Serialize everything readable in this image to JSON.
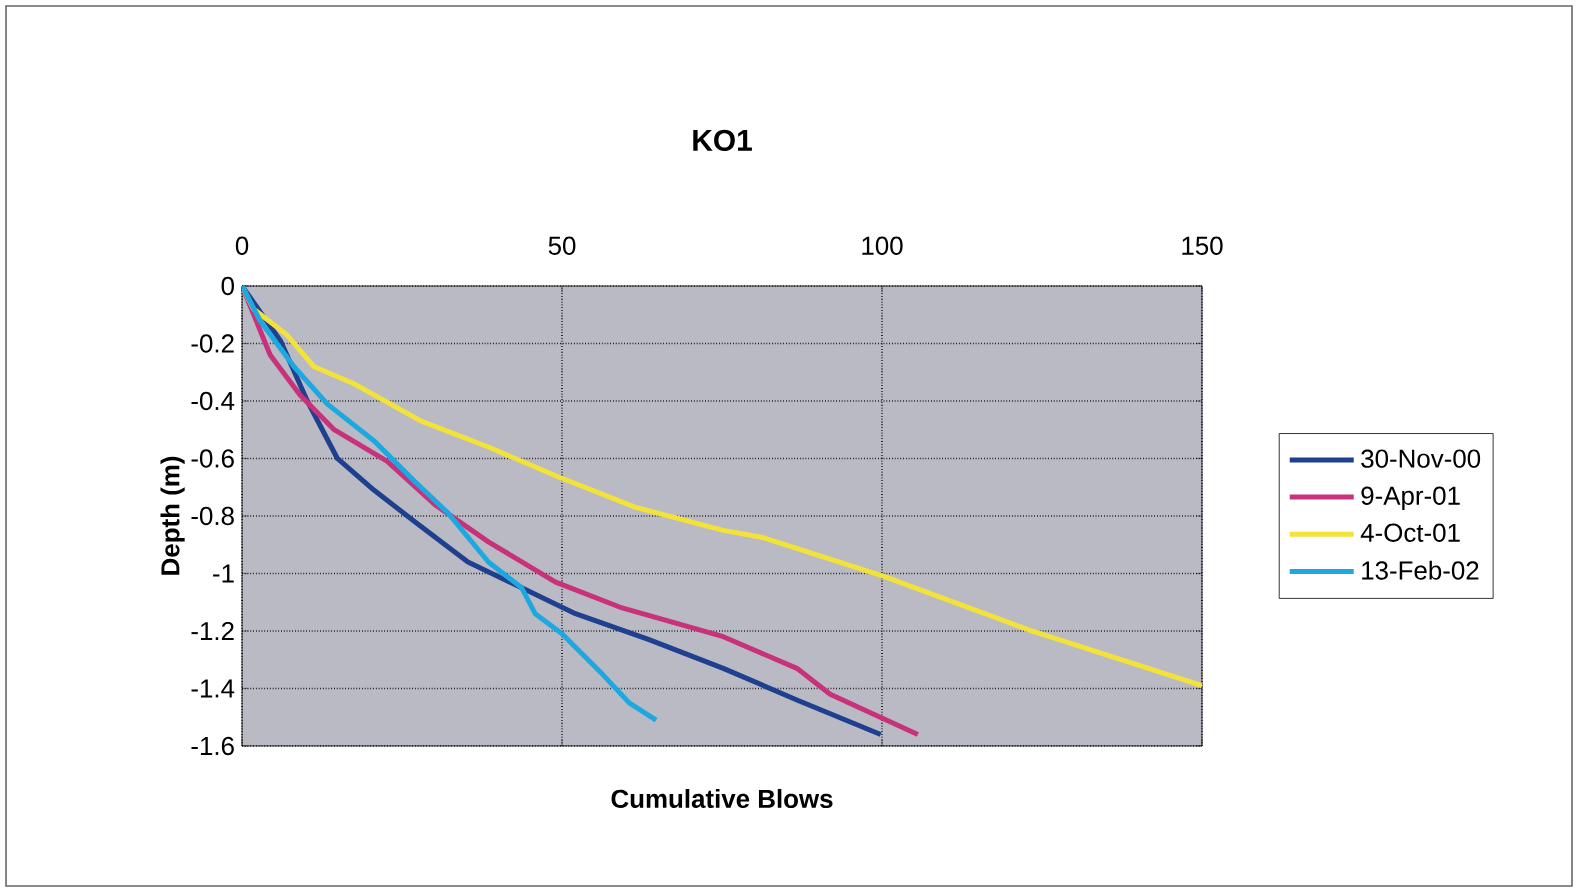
{
  "chart_data": {
    "type": "line",
    "title": "KO1",
    "xlabel": "Cumulative Blows",
    "ylabel": "Depth (m)",
    "xlim": [
      0,
      150
    ],
    "xticks": [
      0,
      50,
      100,
      150
    ],
    "ylim": [
      -1.6,
      0
    ],
    "yticks": [
      -1.6,
      -1.4,
      -1.2,
      -1,
      -0.8,
      -0.6,
      -0.4,
      -0.2,
      0
    ],
    "grid": true,
    "legend": "right",
    "marker": "none",
    "line_style": "solid",
    "series": [
      {
        "name": "30-Nov-00",
        "color": "#1f3f8f",
        "x": [
          0,
          6,
          10.2,
          14.9,
          20.6,
          27,
          35.3,
          43.7,
          52.1,
          63.6,
          75.2,
          86.7,
          99.8
        ],
        "values": [
          0,
          -0.19,
          -0.4,
          -0.6,
          -0.71,
          -0.82,
          -0.96,
          -1.05,
          -1.14,
          -1.23,
          -1.33,
          -1.44,
          -1.56
        ]
      },
      {
        "name": "9-Apr-01",
        "color": "#c8327a",
        "x": [
          0,
          4.4,
          9.1,
          14.4,
          22.7,
          30.1,
          38.5,
          49,
          59.4,
          75.2,
          86.7,
          91.9,
          105.6
        ],
        "values": [
          0,
          -0.24,
          -0.38,
          -0.5,
          -0.61,
          -0.76,
          -0.89,
          -1.03,
          -1.12,
          -1.22,
          -1.33,
          -1.42,
          -1.56
        ]
      },
      {
        "name": "4-Oct-01",
        "color": "#f2e23a",
        "x": [
          0,
          1.8,
          7,
          11.2,
          17.5,
          28,
          38.5,
          49,
          61.5,
          75.2,
          81.4,
          100.3,
          123.4,
          150
        ],
        "values": [
          0,
          -0.08,
          -0.17,
          -0.28,
          -0.34,
          -0.47,
          -0.56,
          -0.66,
          -0.77,
          -0.85,
          -0.875,
          -1.01,
          -1.2,
          -1.39
        ]
      },
      {
        "name": "13-Feb-02",
        "color": "#1ea8e0",
        "x": [
          0,
          2.8,
          8.1,
          13.3,
          20.7,
          27,
          32.2,
          38.5,
          43.7,
          45.8,
          50,
          56.3,
          60.5,
          64.7
        ],
        "values": [
          0,
          -0.12,
          -0.28,
          -0.41,
          -0.54,
          -0.68,
          -0.79,
          -0.96,
          -1.05,
          -1.14,
          -1.21,
          -1.35,
          -1.45,
          -1.51
        ]
      }
    ]
  }
}
